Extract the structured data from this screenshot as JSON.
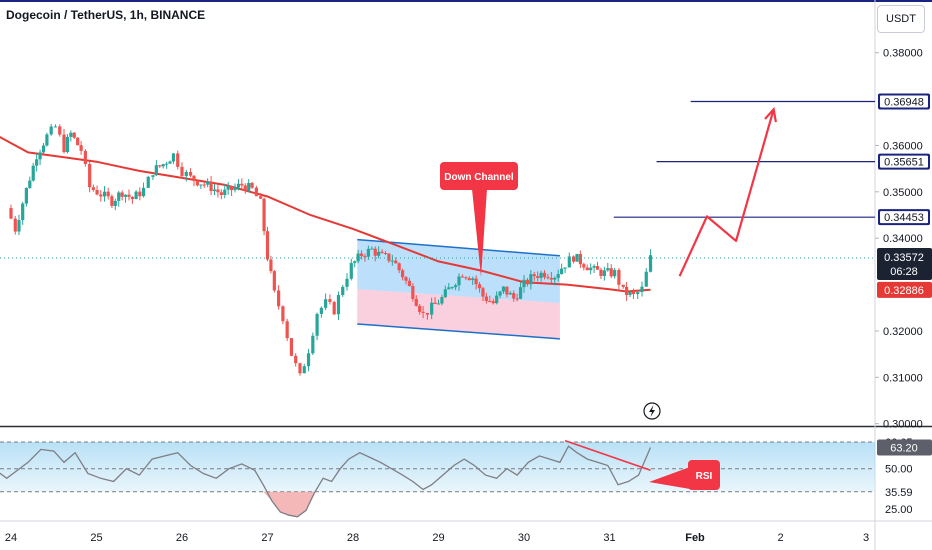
{
  "header": {
    "title": "Dogecoin / TetherUS, 1h, BINANCE",
    "currency": "USDT"
  },
  "colors": {
    "up": "#26a69a",
    "down": "#ef5350",
    "ma": "#e53935",
    "level": "#1a237e",
    "arrow": "#f23645",
    "rsi": "#7e7e84"
  },
  "annotations": {
    "channel_label": "Down Channel",
    "rsi_label": "RSI",
    "time_remaining": "06:28"
  },
  "chart_data": [
    {
      "type": "candlestick",
      "title": "Dogecoin / TetherUS, 1h, BINANCE",
      "x_ticks": [
        "24",
        "25",
        "26",
        "27",
        "28",
        "29",
        "30",
        "31",
        "Feb",
        "2",
        "3"
      ],
      "y_ticks": [
        "0.38000",
        "0.36000",
        "0.35000",
        "0.34000",
        "0.32000",
        "0.31000",
        "0.30000"
      ],
      "ylim": [
        0.2995,
        0.3905
      ],
      "price_labels": [
        {
          "value": 0.36948,
          "text": "0.36948",
          "style": "level"
        },
        {
          "value": 0.35651,
          "text": "0.35651",
          "style": "level"
        },
        {
          "value": 0.34453,
          "text": "0.34453",
          "style": "level"
        },
        {
          "value": 0.33572,
          "text": "0.33572",
          "style": "current"
        },
        {
          "value": 0.32886,
          "text": "0.32886",
          "style": "ma"
        }
      ],
      "levels": [
        {
          "value": 0.36948,
          "from_day": 31.95
        },
        {
          "value": 0.35651,
          "from_day": 31.55
        },
        {
          "value": 0.34453,
          "from_day": 31.05
        }
      ],
      "channel": {
        "start_day": 28.05,
        "end_day": 30.42,
        "upper": [
          0.3397,
          0.3362
        ],
        "lower": [
          0.3215,
          0.3183
        ],
        "mid": [
          0.329,
          0.326
        ]
      },
      "projection": [
        [
          31.82,
          0.3318
        ],
        [
          32.14,
          0.3447
        ],
        [
          32.48,
          0.3394
        ],
        [
          32.92,
          0.3678
        ]
      ],
      "ohlc_points": [
        [
          23.95,
          0.3465
        ],
        [
          24.05,
          0.342
        ],
        [
          24.18,
          0.3505
        ],
        [
          24.3,
          0.358
        ],
        [
          24.42,
          0.362
        ],
        [
          24.52,
          0.364
        ],
        [
          24.62,
          0.3595
        ],
        [
          24.7,
          0.3625
        ],
        [
          24.82,
          0.359
        ],
        [
          24.92,
          0.351
        ],
        [
          25.05,
          0.3495
        ],
        [
          25.18,
          0.348
        ],
        [
          25.3,
          0.35
        ],
        [
          25.42,
          0.3485
        ],
        [
          25.55,
          0.3505
        ],
        [
          25.66,
          0.3545
        ],
        [
          25.78,
          0.356
        ],
        [
          25.9,
          0.358
        ],
        [
          26.0,
          0.3545
        ],
        [
          26.1,
          0.353
        ],
        [
          26.22,
          0.352
        ],
        [
          26.34,
          0.351
        ],
        [
          26.46,
          0.3495
        ],
        [
          26.58,
          0.3505
        ],
        [
          26.7,
          0.3515
        ],
        [
          26.82,
          0.3505
        ],
        [
          26.92,
          0.3475
        ],
        [
          27.0,
          0.336
        ],
        [
          27.08,
          0.328
        ],
        [
          27.18,
          0.323
        ],
        [
          27.28,
          0.315
        ],
        [
          27.38,
          0.31
        ],
        [
          27.48,
          0.316
        ],
        [
          27.58,
          0.324
        ],
        [
          27.68,
          0.326
        ],
        [
          27.78,
          0.3245
        ],
        [
          27.88,
          0.33
        ],
        [
          27.98,
          0.334
        ],
        [
          28.1,
          0.3365
        ],
        [
          28.22,
          0.3375
        ],
        [
          28.34,
          0.336
        ],
        [
          28.46,
          0.3355
        ],
        [
          28.58,
          0.332
        ],
        [
          28.7,
          0.328
        ],
        [
          28.82,
          0.3235
        ],
        [
          28.92,
          0.325
        ],
        [
          29.04,
          0.327
        ],
        [
          29.16,
          0.33
        ],
        [
          29.28,
          0.3325
        ],
        [
          29.4,
          0.3315
        ],
        [
          29.52,
          0.3275
        ],
        [
          29.64,
          0.326
        ],
        [
          29.76,
          0.329
        ],
        [
          29.88,
          0.327
        ],
        [
          30.0,
          0.33
        ],
        [
          30.12,
          0.332
        ],
        [
          30.24,
          0.3325
        ],
        [
          30.36,
          0.332
        ],
        [
          30.48,
          0.3345
        ],
        [
          30.58,
          0.336
        ],
        [
          30.7,
          0.3345
        ],
        [
          30.82,
          0.333
        ],
        [
          30.94,
          0.3325
        ],
        [
          31.06,
          0.3325
        ],
        [
          31.16,
          0.3285
        ],
        [
          31.28,
          0.3275
        ],
        [
          31.38,
          0.329
        ],
        [
          31.48,
          0.3357
        ]
      ],
      "ma_points": [
        [
          23.8,
          0.3625
        ],
        [
          24.2,
          0.3585
        ],
        [
          24.6,
          0.3575
        ],
        [
          25.0,
          0.3565
        ],
        [
          25.5,
          0.3545
        ],
        [
          26.0,
          0.353
        ],
        [
          26.5,
          0.3515
        ],
        [
          27.0,
          0.349
        ],
        [
          27.5,
          0.345
        ],
        [
          28.0,
          0.342
        ],
        [
          28.5,
          0.3385
        ],
        [
          29.0,
          0.335
        ],
        [
          29.5,
          0.333
        ],
        [
          30.0,
          0.3305
        ],
        [
          30.5,
          0.33
        ],
        [
          31.0,
          0.329
        ],
        [
          31.2,
          0.3285
        ],
        [
          31.48,
          0.3289
        ]
      ]
    },
    {
      "type": "line",
      "title": "RSI",
      "y_ticks": [
        "66.65",
        "50.00",
        "35.59",
        "25.00"
      ],
      "current": {
        "value": 63.2,
        "text": "63.20"
      },
      "ylim": [
        18,
        76
      ],
      "levels": [
        66.65,
        50.0,
        35.59
      ],
      "rsi_points": [
        [
          23.8,
          50
        ],
        [
          23.95,
          44
        ],
        [
          24.05,
          48
        ],
        [
          24.2,
          54
        ],
        [
          24.35,
          62
        ],
        [
          24.5,
          61
        ],
        [
          24.62,
          54
        ],
        [
          24.75,
          60
        ],
        [
          24.9,
          47
        ],
        [
          25.05,
          44
        ],
        [
          25.2,
          42
        ],
        [
          25.35,
          50
        ],
        [
          25.5,
          46
        ],
        [
          25.65,
          56
        ],
        [
          25.8,
          58
        ],
        [
          25.95,
          60
        ],
        [
          26.1,
          52
        ],
        [
          26.25,
          47
        ],
        [
          26.4,
          44
        ],
        [
          26.55,
          50
        ],
        [
          26.7,
          53
        ],
        [
          26.85,
          49
        ],
        [
          26.95,
          40
        ],
        [
          27.05,
          30
        ],
        [
          27.15,
          23
        ],
        [
          27.25,
          21
        ],
        [
          27.35,
          20
        ],
        [
          27.45,
          24
        ],
        [
          27.55,
          35
        ],
        [
          27.65,
          44
        ],
        [
          27.75,
          42
        ],
        [
          27.85,
          50
        ],
        [
          27.95,
          56
        ],
        [
          28.08,
          60
        ],
        [
          28.2,
          57
        ],
        [
          28.32,
          54
        ],
        [
          28.45,
          50
        ],
        [
          28.58,
          46
        ],
        [
          28.7,
          42
        ],
        [
          28.82,
          37
        ],
        [
          28.92,
          40
        ],
        [
          29.05,
          46
        ],
        [
          29.18,
          52
        ],
        [
          29.3,
          56
        ],
        [
          29.42,
          52
        ],
        [
          29.55,
          46
        ],
        [
          29.68,
          44
        ],
        [
          29.8,
          50
        ],
        [
          29.92,
          46
        ],
        [
          30.05,
          54
        ],
        [
          30.18,
          58
        ],
        [
          30.3,
          56
        ],
        [
          30.42,
          54
        ],
        [
          30.52,
          64
        ],
        [
          30.62,
          60
        ],
        [
          30.74,
          56
        ],
        [
          30.86,
          54
        ],
        [
          30.98,
          52
        ],
        [
          31.1,
          40
        ],
        [
          31.22,
          42
        ],
        [
          31.34,
          46
        ],
        [
          31.48,
          63.2
        ]
      ],
      "divergence": [
        [
          30.48,
          67.5
        ],
        [
          31.48,
          49
        ]
      ]
    }
  ]
}
